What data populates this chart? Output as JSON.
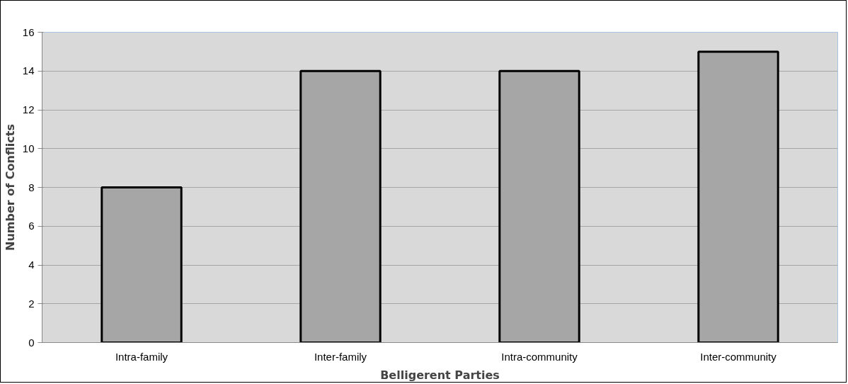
{
  "chart_data": {
    "type": "bar",
    "categories": [
      "Intra-family",
      "Inter-family",
      "Intra-community",
      "Inter-community"
    ],
    "values": [
      8,
      14,
      14,
      15
    ],
    "color": "#a6a6a6",
    "xlabel": "Belligerent Parties",
    "ylabel": "Number of Conflicts",
    "ylim": [
      0,
      16
    ],
    "yticks": [
      0,
      2,
      4,
      6,
      8,
      10,
      12,
      14,
      16
    ],
    "grid": "y"
  }
}
